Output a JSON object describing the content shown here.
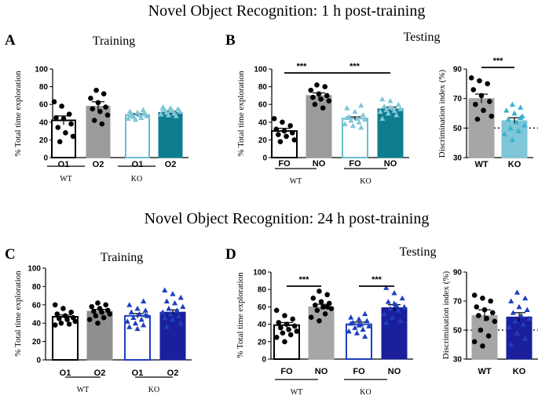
{
  "sections": {
    "top_title": "Novel Object Recognition: 1 h post-training",
    "bottom_title": "Novel Object Recognition: 24 h post-training"
  },
  "panel_letters": {
    "A": "A",
    "B": "B",
    "C": "C",
    "D": "D"
  },
  "colors": {
    "gray": "#9b9b9b",
    "teal_light": "#7ec6d8",
    "teal_dark": "#0e7d8f",
    "blue": "#1f3fbf",
    "navy": "#1a1f9c",
    "black": "#000000",
    "bar_gray": "#a6a6a6",
    "bar_gray_dark": "#8f8f8f",
    "disc_teal": "#38b2cc"
  },
  "chart_data": [
    {
      "id": "A",
      "type": "bar",
      "title": "Training",
      "ylabel": "% Total time exploration",
      "ylim": [
        0,
        100
      ],
      "yticks": [
        0,
        20,
        40,
        60,
        80,
        100
      ],
      "categories": [
        "O1",
        "O2",
        "O1",
        "O2"
      ],
      "groups": [
        {
          "label": "WT"
        },
        {
          "label": "KO"
        }
      ],
      "series": [
        {
          "name": "WT O1",
          "mean": 42,
          "sem": 5,
          "fill": "#ffffff",
          "stroke": "#000000",
          "marker": "circle",
          "mcolor": "#000000",
          "points": [
            63,
            58,
            49,
            45,
            44,
            38,
            34,
            28,
            24,
            18
          ]
        },
        {
          "name": "WT O2",
          "mean": 58,
          "sem": 5,
          "fill": "#9b9b9b",
          "stroke": "#9b9b9b",
          "marker": "circle",
          "mcolor": "#000000",
          "points": [
            76,
            72,
            67,
            62,
            57,
            55,
            52,
            48,
            42,
            38
          ]
        },
        {
          "name": "KO O1",
          "mean": 48,
          "sem": 1.5,
          "fill": "#ffffff",
          "stroke": "#6bbdd1",
          "marker": "triangle",
          "mcolor": "#7ec6d8",
          "points": [
            54,
            52,
            51,
            50,
            49,
            48,
            47,
            46,
            45,
            44,
            43,
            49,
            47
          ]
        },
        {
          "name": "KO O2",
          "mean": 51,
          "sem": 1.5,
          "fill": "#0e7d8f",
          "stroke": "#0e7d8f",
          "marker": "triangle",
          "mcolor": "#7ec6d8",
          "points": [
            57,
            56,
            55,
            54,
            53,
            52,
            51,
            50,
            49,
            48,
            47,
            55,
            53
          ]
        }
      ]
    },
    {
      "id": "B",
      "type": "bar",
      "title": "Testing",
      "ylabel": "% Total time exploration",
      "ylim": [
        0,
        100
      ],
      "yticks": [
        0,
        20,
        40,
        60,
        80,
        100
      ],
      "categories": [
        "FO",
        "NO",
        "FO",
        "NO"
      ],
      "groups": [
        {
          "label": "WT"
        },
        {
          "label": "KO"
        }
      ],
      "significance": [
        "***",
        "***"
      ],
      "series": [
        {
          "name": "WT FO",
          "mean": 30,
          "sem": 3,
          "fill": "#ffffff",
          "stroke": "#000000",
          "marker": "circle",
          "mcolor": "#000000",
          "points": [
            44,
            40,
            36,
            32,
            30,
            28,
            26,
            24,
            20,
            18
          ]
        },
        {
          "name": "WT NO",
          "mean": 70,
          "sem": 3,
          "fill": "#9b9b9b",
          "stroke": "#9b9b9b",
          "marker": "circle",
          "mcolor": "#000000",
          "points": [
            82,
            80,
            76,
            72,
            70,
            68,
            66,
            64,
            60,
            56
          ]
        },
        {
          "name": "KO FO",
          "mean": 44,
          "sem": 2,
          "fill": "#ffffff",
          "stroke": "#6bbdd1",
          "marker": "triangle",
          "mcolor": "#7ec6d8",
          "points": [
            59,
            56,
            52,
            48,
            46,
            44,
            43,
            42,
            40,
            38,
            36,
            34,
            45
          ]
        },
        {
          "name": "KO NO",
          "mean": 55,
          "sem": 2,
          "fill": "#0e7d8f",
          "stroke": "#0e7d8f",
          "marker": "triangle",
          "mcolor": "#7ec6d8",
          "points": [
            66,
            64,
            60,
            58,
            56,
            55,
            54,
            53,
            52,
            50,
            48,
            44,
            57
          ]
        }
      ]
    },
    {
      "id": "B2",
      "type": "bar",
      "title": "",
      "ylabel": "Discrimination index (%)",
      "ylim": [
        30,
        90
      ],
      "yticks": [
        30,
        50,
        70,
        90
      ],
      "refline": 50,
      "categories": [
        "WT",
        "KO"
      ],
      "significance": [
        "***"
      ],
      "series": [
        {
          "name": "WT",
          "mean": 70,
          "sem": 3,
          "fill": "#a6a6a6",
          "stroke": "#a6a6a6",
          "marker": "circle",
          "mcolor": "#000000",
          "points": [
            84,
            82,
            80,
            76,
            72,
            68,
            66,
            62,
            58,
            56
          ]
        },
        {
          "name": "KO",
          "mean": 55,
          "sem": 2,
          "fill": "#7ec6d8",
          "stroke": "#7ec6d8",
          "marker": "triangle",
          "mcolor": "#38b2cc",
          "points": [
            66,
            64,
            62,
            60,
            58,
            56,
            54,
            52,
            50,
            48,
            46,
            42,
            57
          ]
        }
      ]
    },
    {
      "id": "C",
      "type": "bar",
      "title": "Training",
      "ylabel": "% Total time exploration",
      "ylim": [
        0,
        100
      ],
      "yticks": [
        0,
        20,
        40,
        60,
        80,
        100
      ],
      "categories": [
        "O1",
        "O2",
        "O1",
        "O2"
      ],
      "groups": [
        {
          "label": "WT"
        },
        {
          "label": "KO"
        }
      ],
      "series": [
        {
          "name": "WT O1",
          "mean": 47,
          "sem": 2,
          "fill": "#ffffff",
          "stroke": "#000000",
          "marker": "circle",
          "mcolor": "#000000",
          "points": [
            60,
            56,
            52,
            50,
            48,
            46,
            45,
            44,
            42,
            40,
            39,
            38
          ]
        },
        {
          "name": "WT O2",
          "mean": 53,
          "sem": 2,
          "fill": "#8f8f8f",
          "stroke": "#8f8f8f",
          "marker": "circle",
          "mcolor": "#000000",
          "points": [
            62,
            60,
            58,
            56,
            54,
            53,
            52,
            50,
            48,
            46,
            44,
            40
          ]
        },
        {
          "name": "KO O1",
          "mean": 48,
          "sem": 2.5,
          "fill": "#ffffff",
          "stroke": "#1f3fbf",
          "marker": "triangle",
          "mcolor": "#1f3fbf",
          "points": [
            64,
            60,
            56,
            54,
            52,
            50,
            48,
            46,
            44,
            42,
            40,
            38,
            36,
            34,
            49
          ]
        },
        {
          "name": "KO O2",
          "mean": 52,
          "sem": 2.5,
          "fill": "#1a1f9c",
          "stroke": "#1a1f9c",
          "marker": "triangle",
          "mcolor": "#1f3fbf",
          "points": [
            76,
            72,
            68,
            64,
            62,
            58,
            56,
            54,
            52,
            50,
            48,
            46,
            44,
            40,
            36
          ]
        }
      ]
    },
    {
      "id": "D",
      "type": "bar",
      "title": "Testing",
      "ylabel": "% Total time exploration",
      "ylim": [
        0,
        100
      ],
      "yticks": [
        0,
        20,
        40,
        60,
        80,
        100
      ],
      "categories": [
        "FO",
        "NO",
        "FO",
        "NO"
      ],
      "groups": [
        {
          "label": "WT"
        },
        {
          "label": "KO"
        }
      ],
      "significance": [
        "***",
        "***"
      ],
      "series": [
        {
          "name": "WT FO",
          "mean": 39,
          "sem": 3,
          "fill": "#ffffff",
          "stroke": "#000000",
          "marker": "circle",
          "mcolor": "#000000",
          "points": [
            56,
            50,
            46,
            42,
            40,
            38,
            36,
            34,
            32,
            30,
            28,
            25,
            20
          ]
        },
        {
          "name": "WT NO",
          "mean": 60,
          "sem": 3,
          "fill": "#a6a6a6",
          "stroke": "#a6a6a6",
          "marker": "circle",
          "mcolor": "#000000",
          "points": [
            78,
            74,
            70,
            66,
            64,
            62,
            60,
            58,
            56,
            52,
            48,
            44,
            60
          ]
        },
        {
          "name": "KO FO",
          "mean": 40,
          "sem": 2.5,
          "fill": "#ffffff",
          "stroke": "#1f3fbf",
          "marker": "triangle",
          "mcolor": "#1f3fbf",
          "points": [
            52,
            48,
            46,
            44,
            42,
            40,
            38,
            36,
            34,
            32,
            30,
            26,
            41,
            39
          ]
        },
        {
          "name": "KO NO",
          "mean": 59,
          "sem": 3.5,
          "fill": "#1a1f9c",
          "stroke": "#1a1f9c",
          "marker": "triangle",
          "mcolor": "#1f3fbf",
          "points": [
            82,
            76,
            70,
            66,
            62,
            60,
            58,
            56,
            52,
            48,
            44,
            42,
            64
          ]
        }
      ]
    },
    {
      "id": "D2",
      "type": "bar",
      "title": "",
      "ylabel": "Discrimination index (%)",
      "ylim": [
        30,
        90
      ],
      "yticks": [
        30,
        50,
        70,
        90
      ],
      "refline": 50,
      "categories": [
        "WT",
        "KO"
      ],
      "series": [
        {
          "name": "WT",
          "mean": 60,
          "sem": 4,
          "fill": "#a6a6a6",
          "stroke": "#a6a6a6",
          "marker": "circle",
          "mcolor": "#000000",
          "points": [
            74,
            72,
            70,
            66,
            64,
            62,
            60,
            58,
            56,
            50,
            46,
            42,
            39
          ]
        },
        {
          "name": "KO",
          "mean": 59,
          "sem": 3,
          "fill": "#1a1f9c",
          "stroke": "#1a1f9c",
          "marker": "triangle",
          "mcolor": "#1f3fbf",
          "points": [
            76,
            72,
            70,
            66,
            64,
            62,
            60,
            58,
            56,
            54,
            52,
            48,
            44,
            40
          ]
        }
      ]
    }
  ]
}
